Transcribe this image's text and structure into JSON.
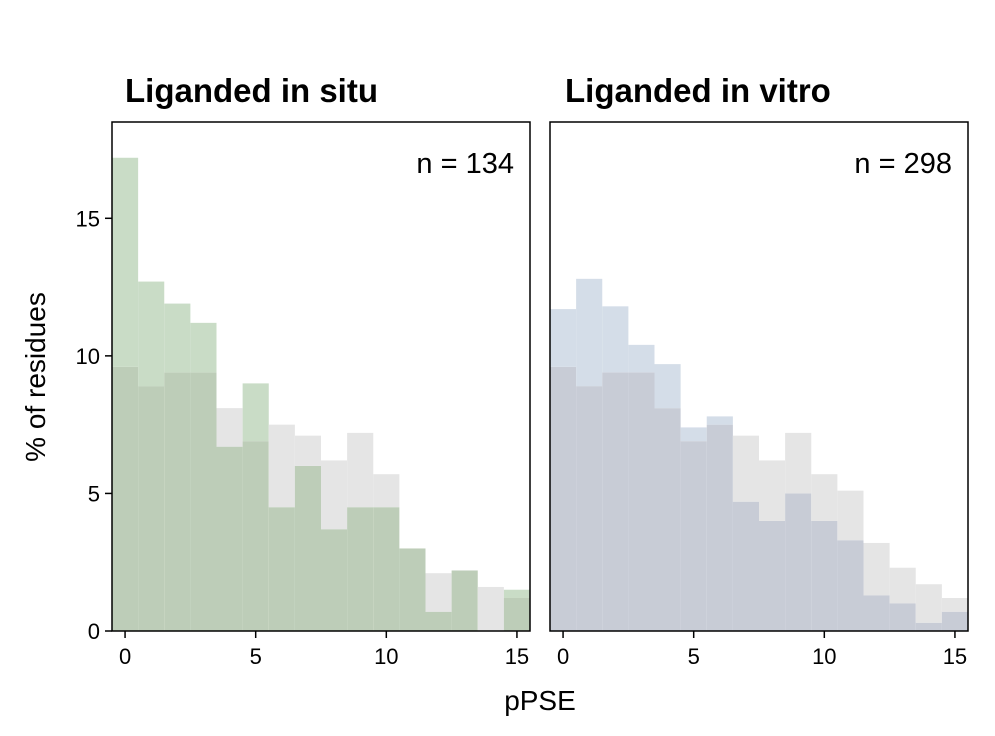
{
  "chart_data": {
    "type": "bar",
    "ylabel": "% of residues",
    "xlabel": "pPSE",
    "xlim": [
      -0.5,
      15.5
    ],
    "ylim": [
      0,
      18.5
    ],
    "xticks": [
      0,
      5,
      10,
      15
    ],
    "yticks": [
      0,
      5,
      10,
      15
    ],
    "bin_starts": [
      0,
      1,
      2,
      3,
      4,
      5,
      6,
      7,
      8,
      9,
      10,
      11,
      12,
      13,
      14,
      15
    ],
    "reference_color": "#e5e5e5",
    "panels": [
      {
        "title": "Liganded in situ",
        "annotation": "n = 134",
        "color": "#c9dcc6",
        "overlap_color": "#bdcdb8",
        "series": [
          {
            "values": [
              17.2,
              12.7,
              11.9,
              11.2,
              6.7,
              9.0,
              4.5,
              6.0,
              3.7,
              4.5,
              4.5,
              3.0,
              0.7,
              2.2,
              0,
              1.5
            ]
          },
          {
            "values": [
              9.6,
              8.9,
              9.4,
              9.4,
              8.1,
              6.9,
              7.5,
              7.1,
              6.2,
              7.2,
              5.7,
              3.0,
              2.1,
              2.2,
              1.6,
              1.2
            ]
          }
        ]
      },
      {
        "title": "Liganded in vitro",
        "annotation": "n = 298",
        "color": "#d4dde8",
        "overlap_color": "#c8ccd6",
        "series": [
          {
            "values": [
              11.7,
              12.8,
              11.8,
              10.4,
              9.7,
              7.4,
              7.8,
              4.7,
              4.0,
              5.0,
              4.0,
              3.3,
              1.3,
              1.0,
              0.3,
              0.7
            ]
          },
          {
            "values": [
              9.6,
              8.9,
              9.4,
              9.4,
              8.1,
              6.9,
              7.5,
              7.1,
              6.2,
              7.2,
              5.7,
              5.1,
              3.2,
              2.3,
              1.7,
              1.2
            ]
          }
        ]
      }
    ]
  }
}
